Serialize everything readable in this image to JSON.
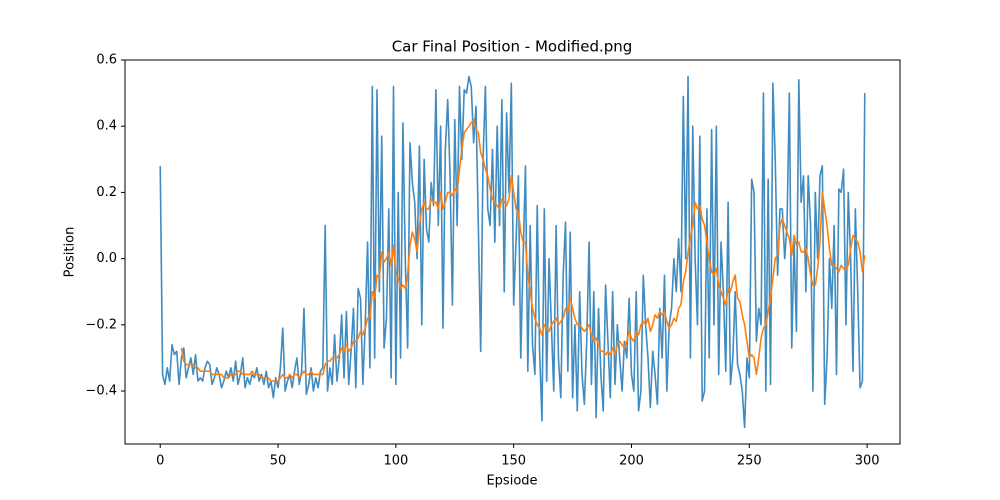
{
  "chart_data": {
    "type": "line",
    "title": "Car Final Position - Modified.png",
    "x_label": "Epsiode",
    "y_label": "Position",
    "x": [
      0,
      1,
      2,
      3,
      4,
      5,
      6,
      7,
      8,
      9,
      10,
      11,
      12,
      13,
      14,
      15,
      16,
      17,
      18,
      19,
      20,
      21,
      22,
      23,
      24,
      25,
      26,
      27,
      28,
      29,
      30,
      31,
      32,
      33,
      34,
      35,
      36,
      37,
      38,
      39,
      40,
      41,
      42,
      43,
      44,
      45,
      46,
      47,
      48,
      49,
      50,
      51,
      52,
      53,
      54,
      55,
      56,
      57,
      58,
      59,
      60,
      61,
      62,
      63,
      64,
      65,
      66,
      67,
      68,
      69,
      70,
      71,
      72,
      73,
      74,
      75,
      76,
      77,
      78,
      79,
      80,
      81,
      82,
      83,
      84,
      85,
      86,
      87,
      88,
      89,
      90,
      91,
      92,
      93,
      94,
      95,
      96,
      97,
      98,
      99,
      100,
      101,
      102,
      103,
      104,
      105,
      106,
      107,
      108,
      109,
      110,
      111,
      112,
      113,
      114,
      115,
      116,
      117,
      118,
      119,
      120,
      121,
      122,
      123,
      124,
      125,
      126,
      127,
      128,
      129,
      130,
      131,
      132,
      133,
      134,
      135,
      136,
      137,
      138,
      139,
      140,
      141,
      142,
      143,
      144,
      145,
      146,
      147,
      148,
      149,
      150,
      151,
      152,
      153,
      154,
      155,
      156,
      157,
      158,
      159,
      160,
      161,
      162,
      163,
      164,
      165,
      166,
      167,
      168,
      169,
      170,
      171,
      172,
      173,
      174,
      175,
      176,
      177,
      178,
      179,
      180,
      181,
      182,
      183,
      184,
      185,
      186,
      187,
      188,
      189,
      190,
      191,
      192,
      193,
      194,
      195,
      196,
      197,
      198,
      199,
      200,
      201,
      202,
      203,
      204,
      205,
      206,
      207,
      208,
      209,
      210,
      211,
      212,
      213,
      214,
      215,
      216,
      217,
      218,
      219,
      220,
      221,
      222,
      223,
      224,
      225,
      226,
      227,
      228,
      229,
      230,
      231,
      232,
      233,
      234,
      235,
      236,
      237,
      238,
      239,
      240,
      241,
      242,
      243,
      244,
      245,
      246,
      247,
      248,
      249,
      250,
      251,
      252,
      253,
      254,
      255,
      256,
      257,
      258,
      259,
      260,
      261,
      262,
      263,
      264,
      265,
      266,
      267,
      268,
      269,
      270,
      271,
      272,
      273,
      274,
      275,
      276,
      277,
      278,
      279,
      280,
      281,
      282,
      283,
      284,
      285,
      286,
      287,
      288,
      289,
      290,
      291,
      292,
      293,
      294,
      295,
      296,
      297,
      298,
      299
    ],
    "series": [
      {
        "color": "#1f77b4",
        "values": [
          0.28,
          -0.35,
          -0.38,
          -0.33,
          -0.37,
          -0.26,
          -0.29,
          -0.28,
          -0.38,
          -0.3,
          -0.27,
          -0.36,
          -0.33,
          -0.3,
          -0.35,
          -0.29,
          -0.37,
          -0.36,
          -0.37,
          -0.33,
          -0.31,
          -0.32,
          -0.38,
          -0.36,
          -0.33,
          -0.35,
          -0.39,
          -0.37,
          -0.34,
          -0.36,
          -0.33,
          -0.37,
          -0.31,
          -0.38,
          -0.35,
          -0.3,
          -0.39,
          -0.36,
          -0.38,
          -0.35,
          -0.36,
          -0.33,
          -0.37,
          -0.35,
          -0.38,
          -0.34,
          -0.39,
          -0.37,
          -0.42,
          -0.36,
          -0.39,
          -0.33,
          -0.21,
          -0.4,
          -0.37,
          -0.35,
          -0.39,
          -0.34,
          -0.3,
          -0.38,
          -0.34,
          -0.15,
          -0.41,
          -0.38,
          -0.33,
          -0.4,
          -0.36,
          -0.39,
          -0.34,
          -0.33,
          0.1,
          -0.4,
          -0.33,
          -0.38,
          -0.23,
          -0.37,
          -0.3,
          -0.17,
          -0.36,
          -0.16,
          -0.38,
          -0.28,
          -0.15,
          -0.39,
          -0.09,
          -0.12,
          -0.38,
          -0.2,
          0.05,
          -0.33,
          0.52,
          -0.3,
          0.51,
          -0.1,
          0.37,
          -0.27,
          -0.18,
          0.15,
          -0.36,
          0.52,
          -0.38,
          0.2,
          -0.3,
          0.41,
          0.0,
          -0.27,
          0.35,
          0.23,
          0.17,
          0.0,
          0.34,
          -0.2,
          0.3,
          0.09,
          0.05,
          0.23,
          0.16,
          0.51,
          0.1,
          0.4,
          -0.21,
          0.33,
          0.48,
          0.25,
          -0.14,
          0.42,
          0.1,
          0.52,
          0.3,
          0.51,
          0.5,
          0.55,
          0.52,
          0.35,
          0.46,
          0.1,
          -0.28,
          0.3,
          0.52,
          0.15,
          0.1,
          0.33,
          0.05,
          0.4,
          0.1,
          0.48,
          -0.1,
          0.44,
          0.2,
          0.53,
          -0.14,
          0.05,
          0.25,
          -0.3,
          0.0,
          0.28,
          -0.34,
          0.1,
          -0.26,
          -0.35,
          0.16,
          -0.28,
          -0.49,
          0.15,
          -0.37,
          0.0,
          -0.2,
          -0.4,
          0.1,
          -0.3,
          -0.42,
          -0.05,
          0.11,
          -0.34,
          0.08,
          -0.42,
          -0.2,
          -0.46,
          -0.1,
          -0.35,
          -0.44,
          -0.25,
          0.05,
          -0.38,
          -0.1,
          -0.48,
          -0.15,
          -0.35,
          -0.46,
          -0.08,
          -0.25,
          -0.42,
          -0.1,
          -0.38,
          -0.2,
          -0.3,
          -0.4,
          -0.25,
          -0.3,
          -0.12,
          -0.35,
          -0.4,
          -0.1,
          -0.46,
          -0.4,
          -0.05,
          -0.2,
          -0.3,
          -0.45,
          -0.28,
          -0.35,
          -0.44,
          -0.15,
          -0.3,
          -0.05,
          -0.4,
          -0.2,
          -0.15,
          0.0,
          -0.1,
          0.06,
          -0.1,
          0.49,
          0.0,
          0.55,
          -0.3,
          0.4,
          0.0,
          -0.2,
          0.37,
          -0.43,
          -0.4,
          0.15,
          -0.3,
          0.39,
          -0.2,
          0.4,
          -0.35,
          0.05,
          -0.1,
          -0.34,
          0.17,
          -0.38,
          -0.3,
          -0.1,
          -0.32,
          -0.35,
          -0.4,
          -0.51,
          -0.3,
          -0.36,
          0.24,
          0.2,
          -0.25,
          -0.15,
          -0.2,
          0.5,
          -0.4,
          0.24,
          -0.38,
          0.53,
          0.3,
          -0.05,
          0.15,
          0.15,
          0.0,
          0.1,
          0.5,
          -0.27,
          0.05,
          -0.22,
          0.54,
          0.17,
          0.25,
          -0.1,
          0.25,
          0.1,
          -0.4,
          0.2,
          0.0,
          0.25,
          0.28,
          -0.44,
          -0.3,
          0.0,
          -0.15,
          0.1,
          -0.35,
          0.21,
          0.2,
          0.27,
          -0.2,
          0.2,
          0.0,
          -0.34,
          0.15,
          -0.1,
          -0.39,
          -0.37,
          0.5
        ]
      },
      {
        "color": "#ff7f0e",
        "values": [
          null,
          null,
          null,
          null,
          null,
          null,
          null,
          null,
          null,
          -0.27,
          -0.31,
          -0.32,
          -0.32,
          -0.32,
          -0.32,
          -0.33,
          -0.33,
          -0.34,
          -0.34,
          -0.34,
          -0.34,
          -0.34,
          -0.35,
          -0.35,
          -0.35,
          -0.35,
          -0.35,
          -0.36,
          -0.36,
          -0.36,
          -0.35,
          -0.35,
          -0.35,
          -0.34,
          -0.34,
          -0.35,
          -0.35,
          -0.35,
          -0.35,
          -0.34,
          -0.35,
          -0.35,
          -0.35,
          -0.36,
          -0.36,
          -0.36,
          -0.36,
          -0.37,
          -0.37,
          -0.37,
          -0.37,
          -0.36,
          -0.35,
          -0.36,
          -0.36,
          -0.35,
          -0.36,
          -0.35,
          -0.35,
          -0.36,
          -0.35,
          -0.34,
          -0.35,
          -0.35,
          -0.34,
          -0.35,
          -0.35,
          -0.35,
          -0.35,
          -0.35,
          -0.32,
          -0.31,
          -0.31,
          -0.3,
          -0.3,
          -0.3,
          -0.29,
          -0.27,
          -0.28,
          -0.26,
          -0.28,
          -0.27,
          -0.25,
          -0.25,
          -0.24,
          -0.22,
          -0.23,
          -0.21,
          -0.18,
          -0.18,
          -0.1,
          -0.12,
          -0.05,
          -0.06,
          0.02,
          -0.01,
          0.0,
          0.02,
          -0.02,
          0.04,
          -0.05,
          -0.06,
          -0.09,
          -0.08,
          -0.09,
          -0.05,
          0.04,
          0.08,
          0.06,
          0.02,
          0.1,
          0.15,
          0.17,
          0.15,
          0.15,
          0.18,
          0.17,
          0.17,
          0.15,
          0.2,
          0.15,
          0.17,
          0.2,
          0.2,
          0.19,
          0.21,
          0.2,
          0.27,
          0.33,
          0.38,
          0.39,
          0.4,
          0.41,
          0.42,
          0.39,
          0.38,
          0.32,
          0.3,
          0.27,
          0.25,
          0.21,
          0.18,
          0.17,
          0.16,
          0.15,
          0.18,
          0.17,
          0.16,
          0.18,
          0.25,
          0.2,
          0.15,
          0.14,
          0.08,
          0.05,
          0.05,
          -0.05,
          -0.1,
          -0.15,
          -0.18,
          -0.2,
          -0.21,
          -0.23,
          -0.2,
          -0.21,
          -0.22,
          -0.2,
          -0.19,
          -0.18,
          -0.2,
          -0.19,
          -0.18,
          -0.15,
          -0.16,
          -0.12,
          -0.15,
          -0.18,
          -0.2,
          -0.2,
          -0.21,
          -0.22,
          -0.21,
          -0.2,
          -0.23,
          -0.25,
          -0.24,
          -0.26,
          -0.28,
          -0.28,
          -0.29,
          -0.28,
          -0.29,
          -0.27,
          -0.29,
          -0.26,
          -0.25,
          -0.26,
          -0.27,
          -0.25,
          -0.22,
          -0.24,
          -0.25,
          -0.22,
          -0.23,
          -0.2,
          -0.19,
          -0.2,
          -0.18,
          -0.22,
          -0.2,
          -0.17,
          -0.18,
          -0.16,
          -0.17,
          -0.16,
          -0.19,
          -0.21,
          -0.2,
          -0.18,
          -0.19,
          -0.15,
          -0.14,
          -0.07,
          -0.04,
          0.02,
          0.06,
          0.1,
          0.17,
          0.15,
          0.16,
          0.12,
          0.1,
          0.05,
          0.0,
          -0.04,
          -0.05,
          -0.03,
          -0.08,
          -0.1,
          -0.12,
          -0.14,
          -0.09,
          -0.1,
          -0.07,
          -0.05,
          -0.12,
          -0.13,
          -0.17,
          -0.2,
          -0.25,
          -0.3,
          -0.29,
          -0.3,
          -0.35,
          -0.3,
          -0.24,
          -0.21,
          -0.2,
          -0.16,
          -0.12,
          -0.06,
          0.0,
          0.01,
          0.1,
          0.12,
          0.1,
          0.08,
          0.06,
          0.01,
          0.07,
          0.04,
          0.05,
          0.02,
          0.02,
          0.03,
          0.0,
          -0.05,
          -0.08,
          -0.08,
          -0.03,
          0.05,
          0.2,
          0.15,
          0.1,
          0.03,
          -0.02,
          -0.02,
          -0.03,
          -0.04,
          -0.02,
          -0.03,
          -0.03,
          -0.02,
          0.03,
          0.07,
          0.06,
          0.05,
          0.02,
          -0.04,
          0.01
        ]
      }
    ],
    "xlim": [
      -14.95,
      313.95
    ],
    "ylim": [
      -0.56,
      0.6
    ],
    "xticks": [
      0,
      50,
      100,
      150,
      200,
      250,
      300
    ],
    "yticks": [
      {
        "value": -0.4,
        "label": "−0.4"
      },
      {
        "value": -0.2,
        "label": "−0.2"
      },
      {
        "value": 0,
        "label": "0.0"
      },
      0.2,
      0.4,
      0.6
    ],
    "grid": false
  }
}
